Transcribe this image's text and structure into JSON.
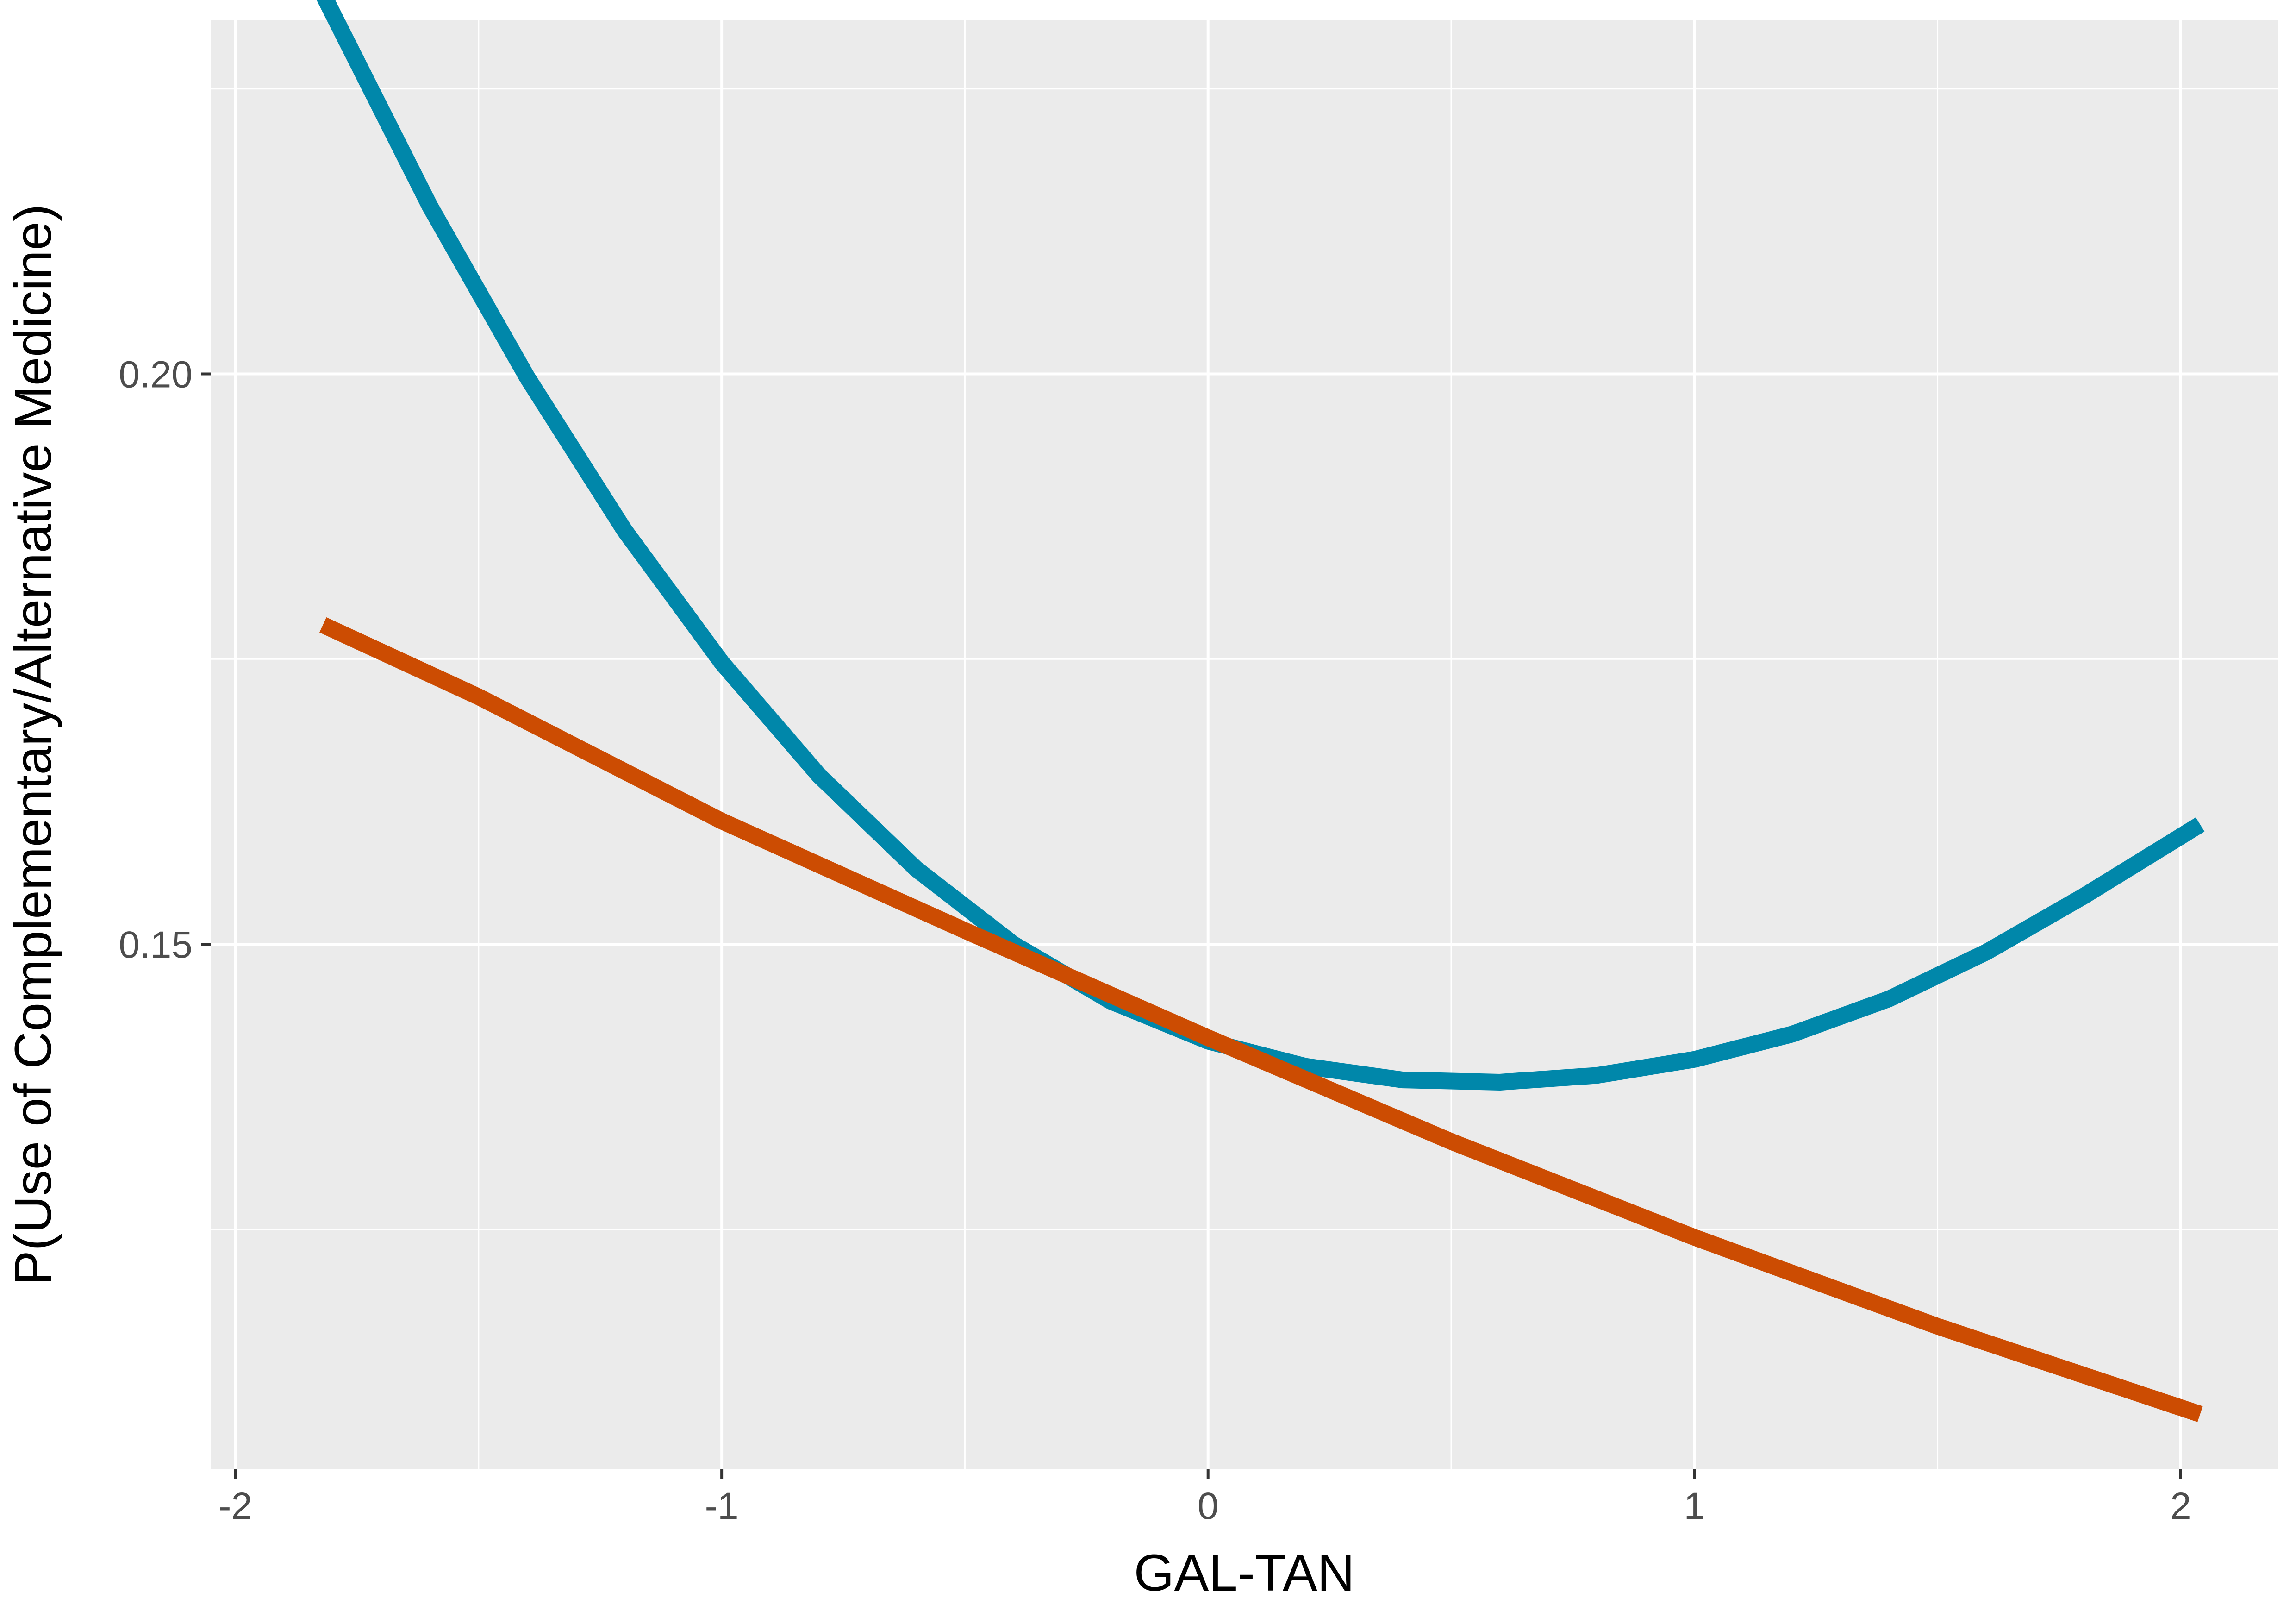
{
  "chart_data": {
    "type": "line",
    "title": "",
    "xlabel": "GAL-TAN",
    "ylabel": "P(Use of Complementary/Alternative Medicine)",
    "xlim": [
      -2.05,
      2.2
    ],
    "ylim": [
      0.104,
      0.231
    ],
    "x_ticks": [
      -2,
      -1,
      0,
      1,
      2
    ],
    "x_tick_labels": [
      "-2",
      "-1",
      "0",
      "1",
      "2"
    ],
    "y_ticks": [
      0.15,
      0.2
    ],
    "y_tick_labels": [
      "0.15",
      "0.20"
    ],
    "y_minor_gridlines": [
      0.125,
      0.175,
      0.225
    ],
    "x_minor_gridlines": [
      -1.5,
      -0.5,
      0.5,
      1.5
    ],
    "grid": true,
    "legend": "none",
    "series": [
      {
        "color": "#0087AA",
        "x": [
          -1.82,
          -1.6,
          -1.4,
          -1.2,
          -1.0,
          -0.8,
          -0.6,
          -0.4,
          -0.2,
          0.0,
          0.2,
          0.4,
          0.6,
          0.8,
          1.0,
          1.2,
          1.4,
          1.6,
          1.8,
          2.04
        ],
        "values": [
          0.2333,
          0.2147,
          0.1997,
          0.1863,
          0.1747,
          0.1648,
          0.1566,
          0.15,
          0.145,
          0.1415,
          0.1393,
          0.1381,
          0.1379,
          0.1385,
          0.1399,
          0.1421,
          0.1452,
          0.1493,
          0.1542,
          0.1605
        ]
      },
      {
        "color": "#CC4C02",
        "x": [
          -1.82,
          -1.5,
          -1.0,
          -0.5,
          0.0,
          0.5,
          1.0,
          1.5,
          2.04
        ],
        "values": [
          0.178,
          0.1717,
          0.1608,
          0.1512,
          0.1418,
          0.1327,
          0.1243,
          0.1165,
          0.1088
        ]
      }
    ]
  }
}
